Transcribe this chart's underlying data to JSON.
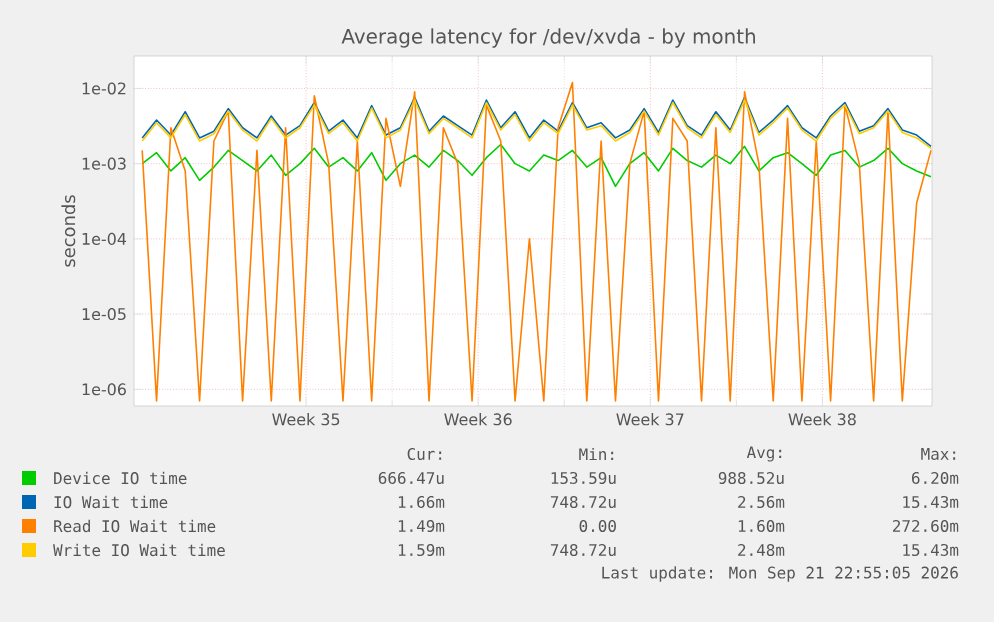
{
  "chart_data": {
    "type": "line",
    "title": "Average latency for /dev/xvda - by month",
    "ylabel": "seconds",
    "log": true,
    "grid": true,
    "legend": "bottom",
    "xlim": [
      "2026-08-20T12:00",
      "2026-09-21T23:00"
    ],
    "xticks": [
      {
        "value": "2026-08-27T12:00",
        "label": "Week 35"
      },
      {
        "value": "2026-09-03T12:00",
        "label": "Week 36"
      },
      {
        "value": "2026-09-10T12:00",
        "label": "Week 37"
      },
      {
        "value": "2026-09-17T12:00",
        "label": "Week 38"
      }
    ],
    "ylim": [
      6e-07,
      0.027
    ],
    "yticks": [
      {
        "value": 1e-06,
        "label": "1e-06"
      },
      {
        "value": 1e-05,
        "label": "1e-05"
      },
      {
        "value": 0.0001,
        "label": "1e-04"
      },
      {
        "value": 0.001,
        "label": "1e-03"
      },
      {
        "value": 0.01,
        "label": "1e-02"
      }
    ],
    "x": [
      "2026-08-20T20:00",
      "2026-08-21T10:00",
      "2026-08-22T00:00",
      "2026-08-22T14:00",
      "2026-08-23T04:00",
      "2026-08-23T18:00",
      "2026-08-24T08:00",
      "2026-08-24T22:00",
      "2026-08-25T12:00",
      "2026-08-26T02:00",
      "2026-08-26T16:00",
      "2026-08-27T06:00",
      "2026-08-27T20:00",
      "2026-08-28T10:00",
      "2026-08-29T00:00",
      "2026-08-29T14:00",
      "2026-08-30T04:00",
      "2026-08-30T18:00",
      "2026-08-31T08:00",
      "2026-08-31T22:00",
      "2026-09-01T12:00",
      "2026-09-02T02:00",
      "2026-09-02T16:00",
      "2026-09-03T06:00",
      "2026-09-03T20:00",
      "2026-09-04T10:00",
      "2026-09-05T00:00",
      "2026-09-05T14:00",
      "2026-09-06T04:00",
      "2026-09-06T18:00",
      "2026-09-07T08:00",
      "2026-09-07T22:00",
      "2026-09-08T12:00",
      "2026-09-09T02:00",
      "2026-09-09T16:00",
      "2026-09-10T06:00",
      "2026-09-10T20:00",
      "2026-09-11T10:00",
      "2026-09-12T00:00",
      "2026-09-12T14:00",
      "2026-09-13T04:00",
      "2026-09-13T18:00",
      "2026-09-14T08:00",
      "2026-09-14T22:00",
      "2026-09-15T12:00",
      "2026-09-16T02:00",
      "2026-09-16T16:00",
      "2026-09-17T06:00",
      "2026-09-17T20:00",
      "2026-09-18T10:00",
      "2026-09-19T00:00",
      "2026-09-19T14:00",
      "2026-09-20T04:00",
      "2026-09-20T18:00",
      "2026-09-21T08:00",
      "2026-09-21T22:00"
    ],
    "series": [
      {
        "name": "Device IO time",
        "color": "#00cc00",
        "values": [
          0.001,
          0.0014,
          0.0008,
          0.0012,
          0.0006,
          0.0009,
          0.0015,
          0.0011,
          0.0008,
          0.0013,
          0.0007,
          0.001,
          0.0016,
          0.0009,
          0.0012,
          0.0008,
          0.0014,
          0.0006,
          0.001,
          0.0013,
          0.0009,
          0.0015,
          0.0011,
          0.0007,
          0.0012,
          0.0018,
          0.001,
          0.0008,
          0.0013,
          0.0011,
          0.0015,
          0.0009,
          0.0012,
          0.0005,
          0.001,
          0.0014,
          0.0008,
          0.0016,
          0.0011,
          0.0009,
          0.0013,
          0.001,
          0.0017,
          0.0008,
          0.0012,
          0.0014,
          0.001,
          0.0007,
          0.0013,
          0.0015,
          0.0009,
          0.0011,
          0.0016,
          0.001,
          0.0008,
          0.00067
        ]
      },
      {
        "name": "IO Wait time",
        "color": "#0066b3",
        "values": [
          0.0022,
          0.0038,
          0.0024,
          0.0049,
          0.0022,
          0.0027,
          0.0054,
          0.003,
          0.0022,
          0.0043,
          0.0024,
          0.0032,
          0.0065,
          0.0027,
          0.0038,
          0.0022,
          0.0059,
          0.0024,
          0.003,
          0.0076,
          0.0027,
          0.0043,
          0.0032,
          0.0024,
          0.007,
          0.003,
          0.0049,
          0.0022,
          0.0038,
          0.0027,
          0.0065,
          0.003,
          0.0035,
          0.0022,
          0.0028,
          0.0054,
          0.0026,
          0.007,
          0.0032,
          0.0024,
          0.0049,
          0.0028,
          0.0076,
          0.0026,
          0.0038,
          0.0059,
          0.003,
          0.0022,
          0.0043,
          0.0065,
          0.0027,
          0.0032,
          0.0054,
          0.0028,
          0.0024,
          0.0017
        ]
      },
      {
        "name": "Read IO Wait time",
        "color": "#ff8000",
        "values": [
          0.0015,
          7e-07,
          0.003,
          0.0008,
          7e-07,
          0.002,
          0.005,
          7e-07,
          0.0015,
          7e-07,
          0.003,
          7e-07,
          0.008,
          0.001,
          7e-07,
          0.002,
          7e-07,
          0.004,
          0.0005,
          0.009,
          7e-07,
          0.003,
          0.001,
          7e-07,
          0.006,
          0.002,
          7e-07,
          0.0001,
          7e-07,
          0.003,
          0.012,
          7e-07,
          0.002,
          7e-07,
          0.001,
          0.005,
          7e-07,
          0.004,
          0.002,
          7e-07,
          0.003,
          7e-07,
          0.009,
          0.001,
          7e-07,
          0.004,
          7e-07,
          0.002,
          7e-07,
          0.006,
          0.001,
          7e-07,
          0.005,
          7e-07,
          0.0003,
          0.0015
        ]
      },
      {
        "name": "Write IO Wait time",
        "color": "#ffcc00",
        "values": [
          0.002,
          0.0035,
          0.0022,
          0.0045,
          0.002,
          0.0025,
          0.005,
          0.0028,
          0.002,
          0.004,
          0.0022,
          0.003,
          0.006,
          0.0025,
          0.0035,
          0.002,
          0.0055,
          0.0022,
          0.0028,
          0.007,
          0.0025,
          0.004,
          0.003,
          0.0022,
          0.0065,
          0.0028,
          0.0045,
          0.002,
          0.0035,
          0.0025,
          0.006,
          0.0028,
          0.0032,
          0.002,
          0.0026,
          0.005,
          0.0024,
          0.0065,
          0.003,
          0.0022,
          0.0045,
          0.0026,
          0.007,
          0.0024,
          0.0035,
          0.0055,
          0.0028,
          0.002,
          0.004,
          0.006,
          0.0025,
          0.003,
          0.005,
          0.0026,
          0.0022,
          0.0016
        ]
      }
    ],
    "annotations": [
      "Cur:",
      "Min:",
      "Avg:",
      "Max:",
      "666.47u",
      "153.59u",
      "988.52u",
      "6.20m",
      "1.66m",
      "748.72u",
      "2.56m",
      "15.43m",
      "1.49m",
      "0.00",
      "1.60m",
      "272.60m",
      "1.59m",
      "748.72u",
      "2.48m",
      "15.43m",
      "Last update: Mon Sep 21 22:55:05 2026"
    ]
  }
}
